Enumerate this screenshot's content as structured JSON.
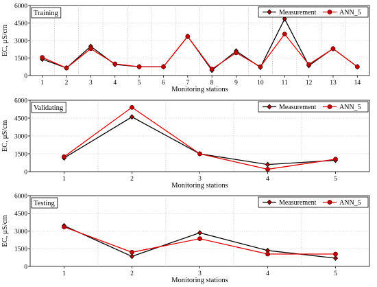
{
  "chart_data": [
    {
      "type": "line",
      "panel_label": "Training",
      "xlabel": "Monitoring stations",
      "ylabel": "EC, µS/cm",
      "categories": [
        "1",
        "2",
        "3",
        "4",
        "5",
        "6",
        "7",
        "8",
        "9",
        "10",
        "11",
        "12",
        "13",
        "14"
      ],
      "yticks": [
        "0",
        "1500",
        "3000",
        "4500",
        "6000"
      ],
      "ylim": [
        0,
        6000
      ],
      "grid": true,
      "legend": "top-right",
      "series": [
        {
          "name": "Measurement",
          "color": "#000000",
          "marker": "diamond",
          "values": [
            1400,
            650,
            2500,
            950,
            750,
            750,
            3350,
            450,
            2100,
            700,
            4850,
            850,
            2300,
            750
          ]
        },
        {
          "name": "ANN_5",
          "color": "#e00000",
          "marker": "circle",
          "values": [
            1550,
            650,
            2300,
            1000,
            750,
            750,
            3350,
            550,
            1950,
            750,
            3550,
            950,
            2300,
            750
          ]
        }
      ]
    },
    {
      "type": "line",
      "panel_label": "Validating",
      "xlabel": "Monitoring stations",
      "ylabel": "EC, µS/cm",
      "categories": [
        "1",
        "2",
        "3",
        "4",
        "5"
      ],
      "yticks": [
        "0",
        "1500",
        "3000",
        "4500",
        "6000"
      ],
      "ylim": [
        0,
        6000
      ],
      "grid": true,
      "legend": "top-right",
      "series": [
        {
          "name": "Measurement",
          "color": "#000000",
          "marker": "diamond",
          "values": [
            1150,
            4600,
            1500,
            600,
            950
          ]
        },
        {
          "name": "ANN_5",
          "color": "#e00000",
          "marker": "circle",
          "values": [
            1250,
            5400,
            1500,
            200,
            1050
          ]
        }
      ]
    },
    {
      "type": "line",
      "panel_label": "Testing",
      "xlabel": "Monitoring stations",
      "ylabel": "EC, µS/cm",
      "categories": [
        "1",
        "2",
        "3",
        "4",
        "5"
      ],
      "yticks": [
        "0",
        "1500",
        "3000",
        "4500",
        "6000"
      ],
      "ylim": [
        0,
        6000
      ],
      "grid": true,
      "legend": "top-right",
      "series": [
        {
          "name": "Measurement",
          "color": "#000000",
          "marker": "diamond",
          "values": [
            3450,
            850,
            2850,
            1350,
            700
          ]
        },
        {
          "name": "ANN_5",
          "color": "#e00000",
          "marker": "circle",
          "values": [
            3350,
            1200,
            2350,
            1050,
            1050
          ]
        }
      ]
    }
  ]
}
